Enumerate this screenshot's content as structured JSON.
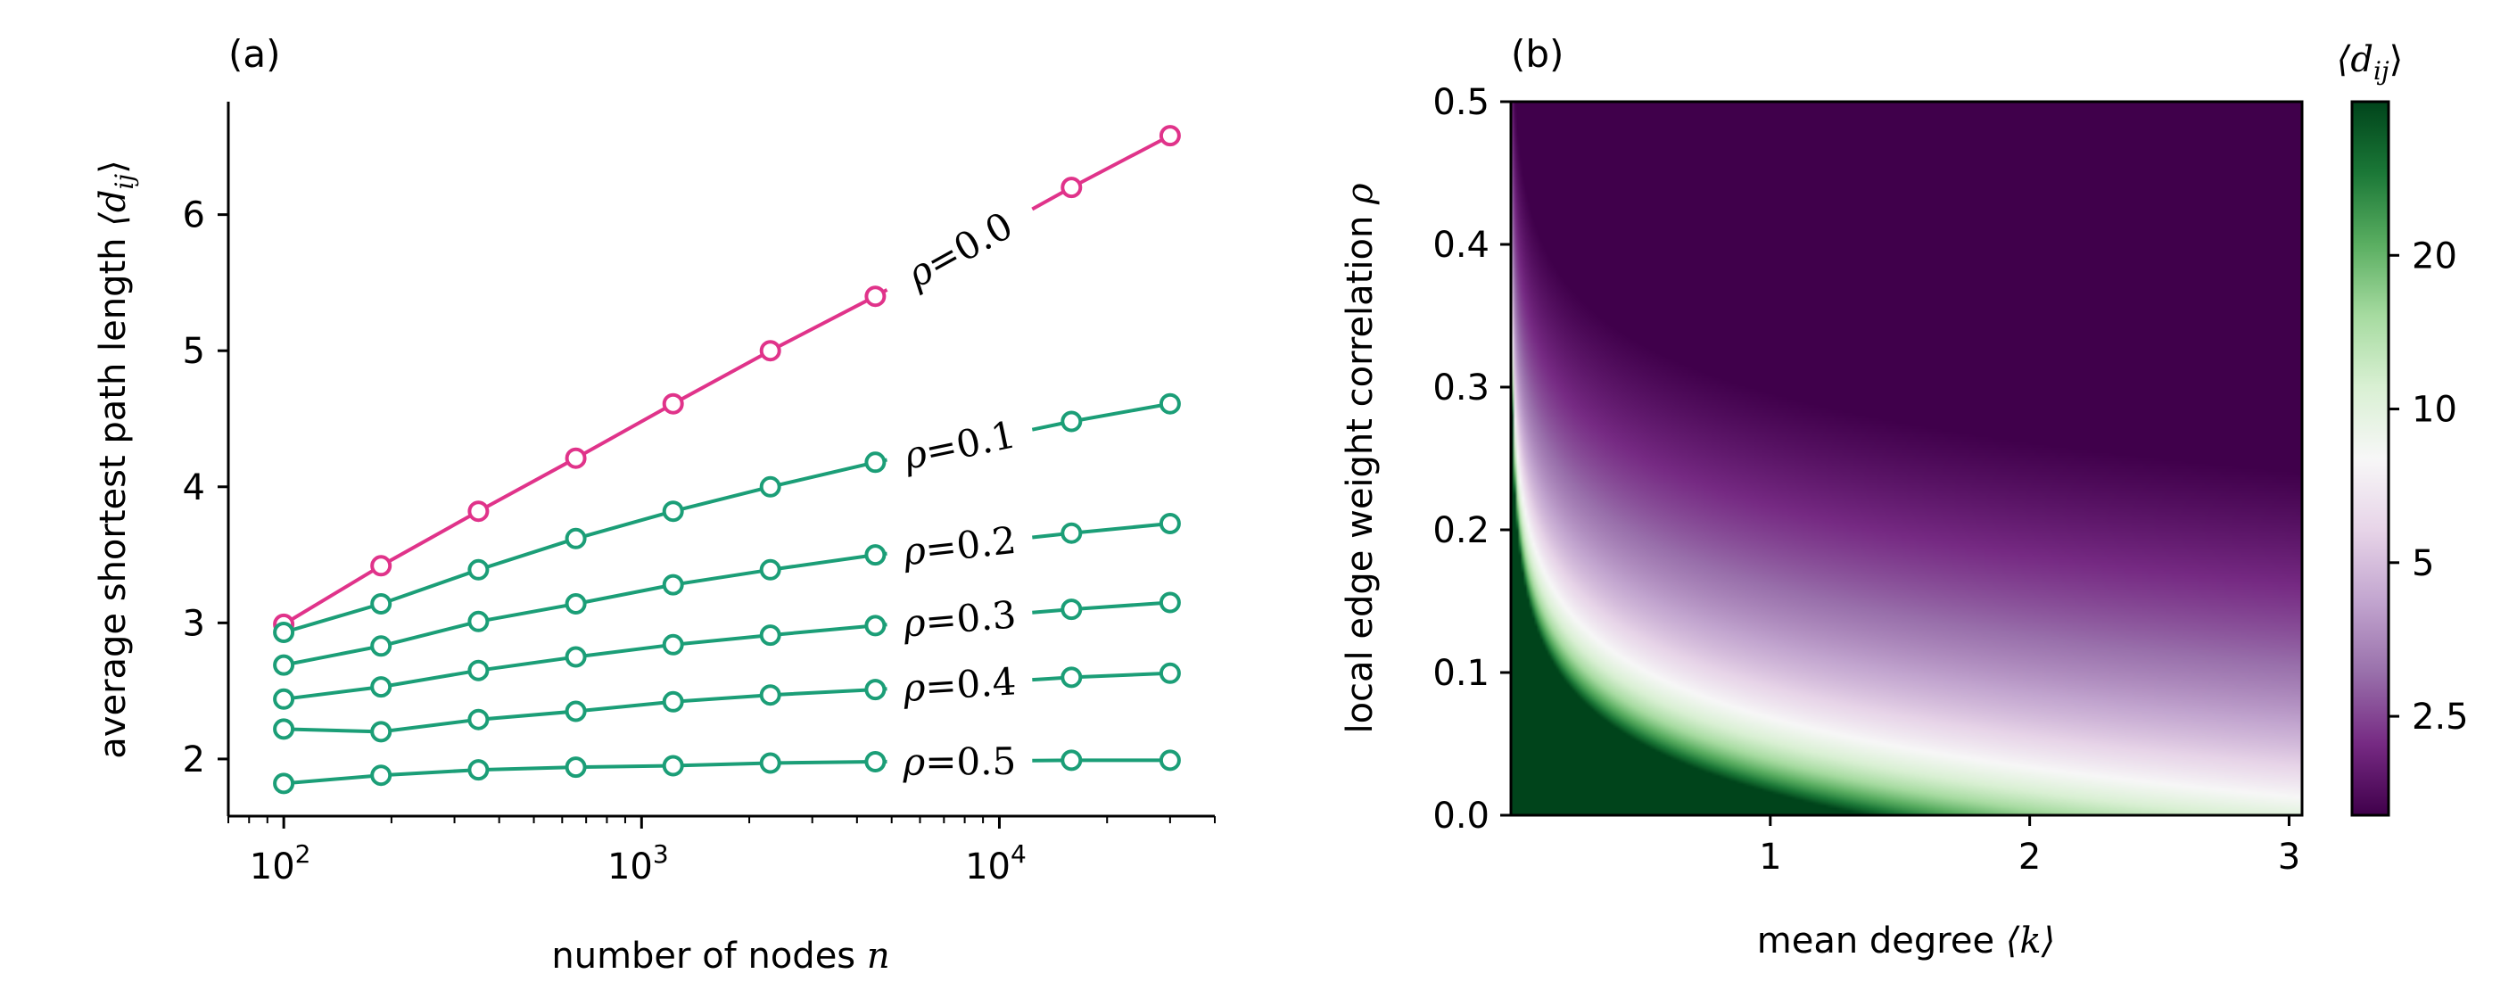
{
  "colors": {
    "rho0": "#e0338a",
    "other": "#1b9e77",
    "colormap": [
      "#40004b",
      "#762a83",
      "#9970ab",
      "#c2a5cf",
      "#e7d4e8",
      "#f7f7f7",
      "#d9f0d3",
      "#a6dba0",
      "#5aae61",
      "#1b7837",
      "#00441b"
    ]
  },
  "chart_data": [
    {
      "type": "line",
      "panel_label": "(a)",
      "xlabel": {
        "text": "number of nodes ",
        "var": "n"
      },
      "ylabel": {
        "text": "average shortest path length ",
        "var": "⟨d",
        "sub": "ij",
        "close": "⟩"
      },
      "xscale": "log",
      "xlim": [
        70,
        40000
      ],
      "ylim": [
        1.58,
        6.83
      ],
      "xticks": [
        {
          "value": 100,
          "base": "10",
          "exp": "2"
        },
        {
          "value": 1000,
          "base": "10",
          "exp": "3"
        },
        {
          "value": 10000,
          "base": "10",
          "exp": "4"
        }
      ],
      "yticks": [
        2,
        3,
        4,
        5,
        6
      ],
      "x": [
        100,
        187,
        350,
        655,
        1225,
        2290,
        4500,
        15900,
        30000
      ],
      "series": [
        {
          "name": "ρ=0.0",
          "rho_symbol": "ρ",
          "rho_value": "=0.0",
          "color": "rho0",
          "values": [
            2.99,
            3.42,
            3.82,
            4.21,
            4.61,
            5.0,
            5.4,
            6.2,
            6.58
          ]
        },
        {
          "name": "ρ=0.1",
          "rho_symbol": "ρ",
          "rho_value": "=0.1",
          "color": "other",
          "values": [
            2.93,
            3.14,
            3.39,
            3.62,
            3.82,
            4.0,
            4.18,
            4.48,
            4.61
          ]
        },
        {
          "name": "ρ=0.2",
          "rho_symbol": "ρ",
          "rho_value": "=0.2",
          "color": "other",
          "values": [
            2.69,
            2.83,
            3.01,
            3.14,
            3.28,
            3.39,
            3.5,
            3.66,
            3.73
          ]
        },
        {
          "name": "ρ=0.3",
          "rho_symbol": "ρ",
          "rho_value": "=0.3",
          "color": "other",
          "values": [
            2.44,
            2.53,
            2.65,
            2.75,
            2.84,
            2.91,
            2.98,
            3.1,
            3.15
          ]
        },
        {
          "name": "ρ=0.4",
          "rho_symbol": "ρ",
          "rho_value": "=0.4",
          "color": "other",
          "values": [
            2.22,
            2.2,
            2.29,
            2.35,
            2.42,
            2.47,
            2.51,
            2.6,
            2.63
          ]
        },
        {
          "name": "ρ=0.5",
          "rho_symbol": "ρ",
          "rho_value": "=0.5",
          "color": "other",
          "values": [
            1.82,
            1.88,
            1.92,
            1.94,
            1.95,
            1.97,
            1.98,
            1.99,
            1.99
          ]
        }
      ]
    },
    {
      "type": "heatmap",
      "panel_label": "(b)",
      "xlabel": {
        "text": "mean degree ",
        "var": "⟨k⟩"
      },
      "ylabel": {
        "text": "local edge weight correlation ",
        "var": "ρ"
      },
      "xlim": [
        0,
        3.05
      ],
      "ylim": [
        0,
        0.5
      ],
      "xticks": [
        1,
        2,
        3
      ],
      "yticks": [
        "0.0",
        "0.1",
        "0.2",
        "0.3",
        "0.4",
        "0.5"
      ],
      "colorbar": {
        "title": {
          "var": "⟨d",
          "sub": "ij",
          "close": "⟩"
        },
        "scale": "log",
        "range": [
          1.6,
          40
        ],
        "ticks": [
          {
            "value": 20,
            "label": "20"
          },
          {
            "value": 10,
            "label": "10"
          },
          {
            "value": 5,
            "label": "5"
          },
          {
            "value": 2.5,
            "label": "2.5"
          }
        ]
      },
      "model": "d = (1 + 1/|k·e^(20ρ) − 1|) · ln(1.3·10^4) / ln(1 + k·e^(20ρ)), clipped to colorbar range; peak of 40 at k≈1.1, ρ=0"
    }
  ]
}
